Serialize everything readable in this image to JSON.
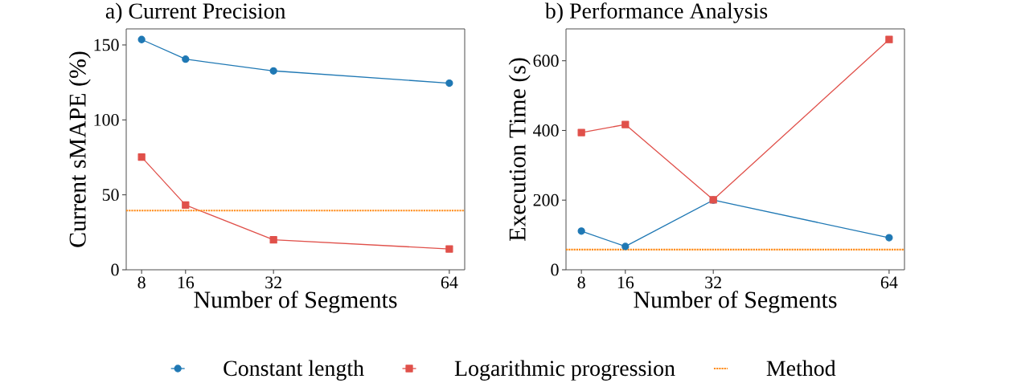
{
  "chart_data": [
    {
      "type": "line",
      "title": "a) Current Precision",
      "xlabel": "Number of Segments",
      "ylabel": "Current sMAPE (%)",
      "x": [
        8,
        16,
        32,
        64
      ],
      "series": [
        {
          "name": "Constant length",
          "color": "#1f78b4",
          "marker": "circle",
          "values": [
            153.6,
            140.5,
            132.7,
            124.5
          ]
        },
        {
          "name": "Logarithmic progression",
          "color": "#e0504a",
          "marker": "square",
          "values": [
            75.2,
            43.2,
            20.0,
            13.9
          ]
        }
      ],
      "ref_lines": [
        {
          "axis": "y",
          "value": 39.5,
          "label": "Method",
          "color": "#ff8c1a",
          "line_style": "dotted"
        }
      ],
      "xlim": [
        5.2,
        66.8
      ],
      "ylim": [
        0,
        160.7
      ],
      "xticks": [
        8,
        16,
        32,
        64
      ],
      "yticks": [
        0,
        50,
        100,
        150
      ],
      "legend": "bottom",
      "grid": false
    },
    {
      "type": "line",
      "title": "b) Performance Analysis",
      "xlabel": "Number of Segments",
      "ylabel": "Execution Time (s)",
      "x": [
        8,
        16,
        32,
        64
      ],
      "series": [
        {
          "color": "#1f78b4",
          "marker": "circle",
          "values": [
            111,
            67,
            200,
            92
          ]
        },
        {
          "color": "#e0504a",
          "marker": "square",
          "values": [
            394,
            417,
            201,
            661
          ]
        }
      ],
      "ref_lines": [
        {
          "axis": "y",
          "value": 58,
          "color": "#ff8c1a",
          "line_style": "dotted"
        }
      ],
      "xlim": [
        5.2,
        66.8
      ],
      "ylim": [
        0,
        691.5
      ],
      "xticks": [
        8,
        16,
        32,
        64
      ],
      "yticks": [
        0,
        200,
        400,
        600
      ],
      "grid": false
    }
  ]
}
